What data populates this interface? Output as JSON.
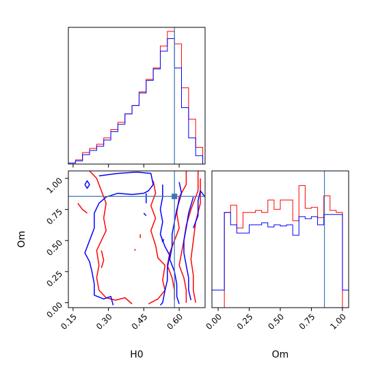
{
  "colors": {
    "series_a": "#ff0000",
    "series_b": "#0000ff",
    "truth": "#3a75b5",
    "axes": "#000000"
  },
  "chart_data": [
    {
      "type": "histogram",
      "panel": "H0 marginal",
      "xlim": [
        0.13,
        0.71
      ],
      "x_ticks": [
        0.15,
        0.3,
        0.45,
        0.6
      ],
      "truth_line": 0.58,
      "y_ticks_shown": false,
      "bin_edges": [
        0.13,
        0.16,
        0.19,
        0.22,
        0.25,
        0.28,
        0.31,
        0.34,
        0.37,
        0.4,
        0.43,
        0.46,
        0.49,
        0.52,
        0.55,
        0.58,
        0.61,
        0.64,
        0.67,
        0.7
      ],
      "series": [
        {
          "color": "red",
          "values": [
            1,
            4,
            11,
            15,
            19,
            25,
            33,
            40,
            48,
            56,
            69,
            81,
            92,
            113,
            127,
            115,
            73,
            43,
            16
          ]
        },
        {
          "color": "blue",
          "values": [
            1,
            3,
            9,
            13,
            17,
            23,
            31,
            38,
            48,
            56,
            68,
            80,
            91,
            108,
            120,
            92,
            54,
            25,
            8
          ]
        }
      ]
    },
    {
      "type": "contour",
      "panel": "H0 vs Om",
      "xlabel": "H0",
      "ylabel": "Om",
      "xlim": [
        0.13,
        0.71
      ],
      "ylim": [
        -0.04,
        1.06
      ],
      "x_tick_labels": [
        "0.15",
        "0.30",
        "0.45",
        "0.60"
      ],
      "x_ticks": [
        0.15,
        0.3,
        0.45,
        0.6
      ],
      "y_tick_labels": [
        "0.00",
        "0.25",
        "0.50",
        "0.75",
        "1.00"
      ],
      "y_ticks": [
        0.0,
        0.25,
        0.5,
        0.75,
        1.0
      ],
      "truth_point": [
        0.58,
        0.855
      ],
      "series": [
        {
          "color": "red",
          "contours": [
            [
              [
                0.22,
                1.06
              ],
              [
                0.25,
                1.0
              ],
              [
                0.27,
                0.9
              ],
              [
                0.29,
                0.8
              ],
              [
                0.28,
                0.68
              ],
              [
                0.29,
                0.58
              ],
              [
                0.27,
                0.5
              ],
              [
                0.25,
                0.42
              ],
              [
                0.26,
                0.3
              ],
              [
                0.25,
                0.2
              ],
              [
                0.26,
                0.1
              ],
              [
                0.29,
                0.04
              ],
              [
                0.33,
                0.02
              ],
              [
                0.37,
                0.04
              ],
              [
                0.4,
                -0.01
              ]
            ],
            [
              [
                0.21,
                0.72
              ],
              [
                0.19,
                0.75
              ],
              [
                0.17,
                0.8
              ]
            ],
            [
              [
                0.49,
                0.98
              ],
              [
                0.5,
                0.88
              ],
              [
                0.48,
                0.78
              ],
              [
                0.5,
                0.68
              ],
              [
                0.48,
                0.58
              ],
              [
                0.5,
                0.46
              ],
              [
                0.51,
                0.36
              ],
              [
                0.54,
                0.3
              ],
              [
                0.53,
                0.18
              ],
              [
                0.54,
                0.1
              ],
              [
                0.51,
                0.03
              ],
              [
                0.47,
                -0.01
              ]
            ],
            [
              [
                0.63,
                1.06
              ],
              [
                0.63,
                0.95
              ],
              [
                0.6,
                0.85
              ],
              [
                0.59,
                0.72
              ],
              [
                0.6,
                0.6
              ],
              [
                0.58,
                0.5
              ],
              [
                0.56,
                0.4
              ],
              [
                0.55,
                0.3
              ],
              [
                0.57,
                0.2
              ],
              [
                0.58,
                0.1
              ],
              [
                0.58,
                0.02
              ]
            ],
            [
              [
                0.68,
                1.06
              ],
              [
                0.68,
                0.9
              ],
              [
                0.65,
                0.75
              ],
              [
                0.63,
                0.62
              ],
              [
                0.62,
                0.5
              ],
              [
                0.61,
                0.4
              ],
              [
                0.6,
                0.3
              ],
              [
                0.62,
                0.2
              ],
              [
                0.63,
                0.1
              ],
              [
                0.63,
                0.0
              ]
            ],
            [
              [
                0.69,
                1.0
              ],
              [
                0.69,
                0.8
              ],
              [
                0.67,
                0.65
              ],
              [
                0.66,
                0.5
              ],
              [
                0.65,
                0.35
              ],
              [
                0.66,
                0.22
              ],
              [
                0.66,
                0.1
              ],
              [
                0.67,
                0.0
              ]
            ],
            [
              [
                0.27,
                0.42
              ],
              [
                0.28,
                0.34
              ],
              [
                0.27,
                0.28
              ]
            ],
            [
              [
                0.435,
                0.55
              ],
              [
                0.435,
                0.52
              ]
            ],
            [
              [
                0.41,
                0.42
              ],
              [
                0.415,
                0.43
              ]
            ]
          ]
        },
        {
          "color": "blue",
          "contours": [
            [
              [
                0.26,
                1.02
              ],
              [
                0.34,
                1.04
              ],
              [
                0.42,
                1.05
              ],
              [
                0.48,
                1.04
              ],
              [
                0.49,
                0.95
              ],
              [
                0.47,
                0.9
              ],
              [
                0.45,
                0.88
              ],
              [
                0.4,
                0.87
              ],
              [
                0.34,
                0.88
              ],
              [
                0.29,
                0.85
              ],
              [
                0.26,
                0.8
              ],
              [
                0.24,
                0.72
              ],
              [
                0.24,
                0.6
              ],
              [
                0.22,
                0.5
              ],
              [
                0.2,
                0.4
              ],
              [
                0.22,
                0.33
              ],
              [
                0.23,
                0.25
              ],
              [
                0.24,
                0.15
              ],
              [
                0.24,
                0.06
              ],
              [
                0.28,
                0.03
              ],
              [
                0.31,
                0.05
              ],
              [
                0.32,
                -0.02
              ]
            ],
            [
              [
                0.2,
                0.95
              ],
              [
                0.21,
                0.98
              ],
              [
                0.22,
                0.95
              ],
              [
                0.21,
                0.92
              ],
              [
                0.2,
                0.95
              ]
            ],
            [
              [
                0.53,
                0.95
              ],
              [
                0.53,
                0.85
              ],
              [
                0.52,
                0.75
              ],
              [
                0.53,
                0.65
              ],
              [
                0.52,
                0.55
              ],
              [
                0.54,
                0.45
              ],
              [
                0.56,
                0.38
              ],
              [
                0.55,
                0.28
              ],
              [
                0.55,
                0.18
              ],
              [
                0.54,
                0.1
              ],
              [
                0.53,
                0.0
              ],
              [
                0.52,
                -0.02
              ]
            ],
            [
              [
                0.6,
                0.97
              ],
              [
                0.61,
                0.88
              ],
              [
                0.59,
                0.75
              ],
              [
                0.58,
                0.65
              ],
              [
                0.57,
                0.55
              ],
              [
                0.57,
                0.45
              ],
              [
                0.56,
                0.35
              ],
              [
                0.58,
                0.25
              ],
              [
                0.59,
                0.15
              ],
              [
                0.59,
                0.05
              ],
              [
                0.6,
                -0.01
              ]
            ],
            [
              [
                0.66,
                0.85
              ],
              [
                0.64,
                0.72
              ],
              [
                0.63,
                0.6
              ],
              [
                0.62,
                0.5
              ],
              [
                0.62,
                0.4
              ],
              [
                0.63,
                0.3
              ],
              [
                0.64,
                0.2
              ],
              [
                0.64,
                0.1
              ],
              [
                0.65,
                0.02
              ]
            ],
            [
              [
                0.71,
                0.85
              ],
              [
                0.69,
                0.9
              ],
              [
                0.68,
                0.82
              ],
              [
                0.68,
                0.7
              ],
              [
                0.66,
                0.6
              ]
            ],
            [
              [
                0.46,
                0.88
              ],
              [
                0.46,
                0.8
              ]
            ],
            [
              [
                0.525,
                0.53
              ],
              [
                0.53,
                0.49
              ],
              [
                0.535,
                0.51
              ]
            ],
            [
              [
                0.45,
                0.72
              ],
              [
                0.46,
                0.7
              ]
            ]
          ]
        }
      ]
    },
    {
      "type": "histogram",
      "panel": "Om marginal",
      "xlabel": "Om",
      "xlim": [
        -0.05,
        1.05
      ],
      "x_tick_labels": [
        "0.00",
        "0.25",
        "0.50",
        "0.75",
        "1.00"
      ],
      "x_ticks": [
        0.0,
        0.25,
        0.5,
        0.75,
        1.0
      ],
      "truth_line": 0.855,
      "y_ticks_shown": false,
      "bin_edges": [
        -0.05,
        0.0,
        0.05,
        0.1,
        0.15,
        0.2,
        0.25,
        0.3,
        0.35,
        0.4,
        0.45,
        0.5,
        0.55,
        0.6,
        0.65,
        0.7,
        0.75,
        0.8,
        0.85,
        0.9,
        0.95,
        1.0,
        1.05
      ],
      "series": [
        {
          "color": "red",
          "values": [
            0,
            0,
            92,
            99,
            77,
            92,
            92,
            94,
            92,
            104,
            95,
            104,
            104,
            84,
            118,
            96,
            97,
            87,
            108,
            94,
            92,
            0
          ]
        },
        {
          "color": "blue",
          "values": [
            17,
            17,
            92,
            80,
            72,
            72,
            80,
            80,
            82,
            78,
            80,
            79,
            80,
            70,
            88,
            86,
            88,
            80,
            90,
            90,
            90,
            17
          ]
        }
      ]
    }
  ]
}
